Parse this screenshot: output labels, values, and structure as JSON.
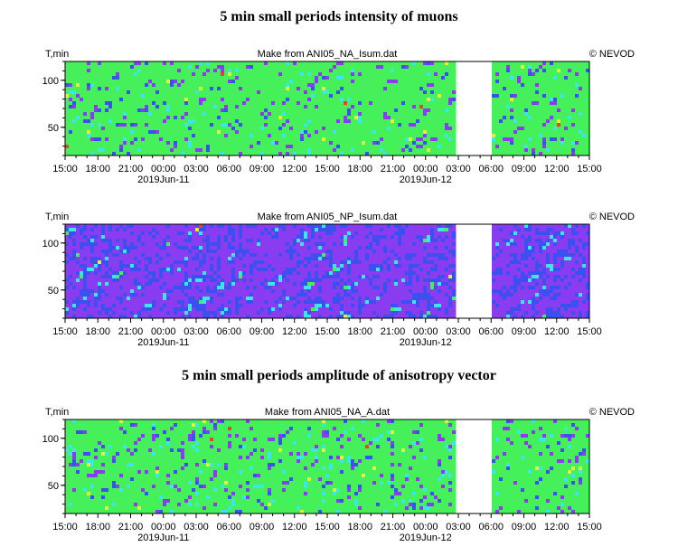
{
  "titles": {
    "intensity": "5 min small periods intensity of muons",
    "anisotropy": "5 min small periods amplitude of anisotropy vector"
  },
  "chart_data": [
    {
      "type": "heatmap",
      "title": "5 min small periods intensity of muons",
      "subtitle": "Make from ANI05_NA_Isum.dat",
      "credit": "© NEVOD",
      "ylabel": "T,min",
      "ylim": [
        20,
        120
      ],
      "yticks": [
        "100",
        "50"
      ],
      "ytick_values": [
        100,
        50
      ],
      "xticks": [
        "15:00",
        "18:00",
        "21:00",
        "00:00",
        "03:00",
        "06:00",
        "09:00",
        "12:00",
        "15:00",
        "18:00",
        "21:00",
        "00:00",
        "03:00",
        "06:00",
        "09:00",
        "12:00",
        "15:00"
      ],
      "dates": [
        "2019Jun-11",
        "2019Jun-12"
      ],
      "palette": "green",
      "data_gap": [
        "03:00",
        "06:00"
      ],
      "grid": false
    },
    {
      "type": "heatmap",
      "subtitle": "Make from ANI05_NP_Isum.dat",
      "credit": "© NEVOD",
      "ylabel": "T,min",
      "ylim": [
        20,
        120
      ],
      "yticks": [
        "100",
        "50"
      ],
      "ytick_values": [
        100,
        50
      ],
      "xticks": [
        "15:00",
        "18:00",
        "21:00",
        "00:00",
        "03:00",
        "06:00",
        "09:00",
        "12:00",
        "15:00",
        "18:00",
        "21:00",
        "00:00",
        "03:00",
        "06:00",
        "09:00",
        "12:00",
        "15:00"
      ],
      "dates": [
        "2019Jun-11",
        "2019Jun-12"
      ],
      "palette": "purple",
      "data_gap": [
        "03:00",
        "06:00"
      ],
      "grid": false
    },
    {
      "type": "heatmap",
      "title": "5 min small periods amplitude of anisotropy vector",
      "subtitle": "Make from ANI05_NA_A.dat",
      "credit": "© NEVOD",
      "ylabel": "T,min",
      "ylim": [
        20,
        120
      ],
      "yticks": [
        "100",
        "50"
      ],
      "ytick_values": [
        100,
        50
      ],
      "xticks": [
        "15:00",
        "18:00",
        "21:00",
        "00:00",
        "03:00",
        "06:00",
        "09:00",
        "12:00",
        "15:00",
        "18:00",
        "21:00",
        "00:00",
        "03:00",
        "06:00",
        "09:00",
        "12:00",
        "15:00"
      ],
      "dates": [
        "2019Jun-11",
        "2019Jun-12"
      ],
      "palette": "green",
      "data_gap": [
        "03:00",
        "06:00"
      ],
      "grid": false
    }
  ],
  "colors": {
    "green": "#46f05a",
    "purple": "#8a3cf0",
    "blue": "#3c50f0",
    "yellow": "#e6f03c",
    "red": "#f03c28",
    "cyan": "#3ce6e6"
  }
}
